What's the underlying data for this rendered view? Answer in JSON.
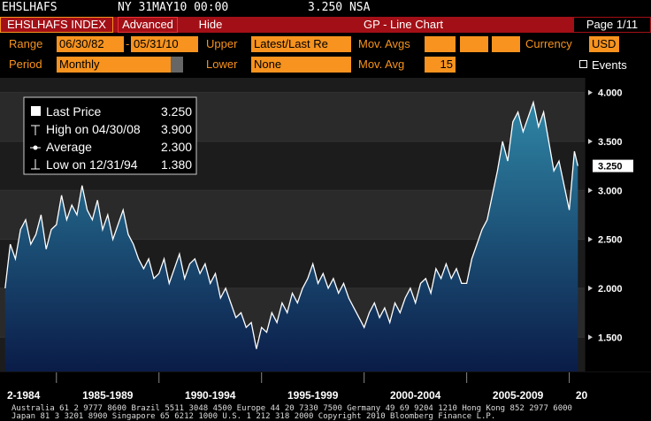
{
  "header": {
    "ticker": "EHSLHAFS",
    "timestamp": "NY 31MAY10 00:00",
    "last": "3.250 NSA"
  },
  "toolbar": {
    "security": "EHSLHAFS INDEX",
    "advanced": "Advanced",
    "hide": "Hide",
    "function": "GP - Line Chart",
    "page": "Page 1/11"
  },
  "form": {
    "range_label": "Range",
    "range_start": "06/30/82",
    "range_sep": "-",
    "range_end": "05/31/10",
    "upper_label": "Upper",
    "upper_value": "Latest/Last Re",
    "mov_avgs_label": "Mov. Avgs",
    "currency_label": "Currency",
    "currency_value": "USD",
    "period_label": "Period",
    "period_value": "Monthly",
    "lower_label": "Lower",
    "lower_value": "None",
    "mov_avg_label": "Mov. Avg",
    "mov_avg_value": "15",
    "events_label": "Events"
  },
  "chart_data": {
    "type": "line",
    "series": [
      {
        "name": "Last Price",
        "color": "#ffffff",
        "area_colors": [
          "#2f86a6",
          "#0a1c48"
        ],
        "x": [
          1982.5,
          1982.75,
          1983,
          1983.25,
          1983.5,
          1983.75,
          1984,
          1984.25,
          1984.5,
          1984.75,
          1985,
          1985.25,
          1985.5,
          1985.75,
          1986,
          1986.25,
          1986.5,
          1986.75,
          1987,
          1987.25,
          1987.5,
          1987.75,
          1988,
          1988.25,
          1988.5,
          1988.75,
          1989,
          1989.25,
          1989.5,
          1989.75,
          1990,
          1990.25,
          1990.5,
          1990.75,
          1991,
          1991.25,
          1991.5,
          1991.75,
          1992,
          1992.25,
          1992.5,
          1992.75,
          1993,
          1993.25,
          1993.5,
          1993.75,
          1994,
          1994.25,
          1994.5,
          1994.75,
          1995,
          1995.25,
          1995.5,
          1995.75,
          1996,
          1996.25,
          1996.5,
          1996.75,
          1997,
          1997.25,
          1997.5,
          1997.75,
          1998,
          1998.25,
          1998.5,
          1998.75,
          1999,
          1999.25,
          1999.5,
          1999.75,
          2000,
          2000.25,
          2000.5,
          2000.75,
          2001,
          2001.25,
          2001.5,
          2001.75,
          2002,
          2002.25,
          2002.5,
          2002.75,
          2003,
          2003.25,
          2003.5,
          2003.75,
          2004,
          2004.25,
          2004.5,
          2004.75,
          2005,
          2005.25,
          2005.5,
          2005.75,
          2006,
          2006.25,
          2006.5,
          2006.75,
          2007,
          2007.25,
          2007.5,
          2007.75,
          2008,
          2008.25,
          2008.5,
          2008.75,
          2009,
          2009.25,
          2009.5,
          2009.75,
          2010,
          2010.25,
          2010.42
        ],
        "values": [
          2.0,
          2.45,
          2.3,
          2.6,
          2.7,
          2.45,
          2.55,
          2.75,
          2.4,
          2.6,
          2.65,
          2.95,
          2.7,
          2.85,
          2.75,
          3.05,
          2.8,
          2.7,
          2.9,
          2.6,
          2.75,
          2.5,
          2.65,
          2.8,
          2.55,
          2.45,
          2.3,
          2.2,
          2.3,
          2.1,
          2.15,
          2.3,
          2.05,
          2.2,
          2.35,
          2.1,
          2.25,
          2.3,
          2.15,
          2.25,
          2.05,
          2.15,
          1.9,
          2.0,
          1.85,
          1.7,
          1.75,
          1.6,
          1.65,
          1.38,
          1.6,
          1.55,
          1.75,
          1.65,
          1.85,
          1.75,
          1.95,
          1.85,
          2.0,
          2.1,
          2.25,
          2.05,
          2.15,
          2.0,
          2.1,
          1.95,
          2.05,
          1.9,
          1.8,
          1.7,
          1.6,
          1.75,
          1.85,
          1.7,
          1.8,
          1.65,
          1.85,
          1.75,
          1.9,
          2.0,
          1.85,
          2.05,
          2.1,
          1.95,
          2.2,
          2.1,
          2.25,
          2.1,
          2.2,
          2.05,
          2.05,
          2.3,
          2.45,
          2.6,
          2.7,
          2.95,
          3.2,
          3.5,
          3.3,
          3.7,
          3.8,
          3.6,
          3.75,
          3.9,
          3.65,
          3.8,
          3.5,
          3.2,
          3.3,
          3.05,
          2.8,
          3.4,
          3.25
        ]
      }
    ],
    "last_price_label": "3.250",
    "legend_stats": [
      {
        "label": "High on 04/30/08",
        "value": "3.900"
      },
      {
        "label": "Average",
        "value": "2.300"
      },
      {
        "label": "Low on 12/31/94",
        "value": "1.380"
      }
    ],
    "xlim": [
      1982.25,
      2010.75
    ],
    "x_separators": [
      1985,
      1990,
      1995,
      2000,
      2005,
      2010
    ],
    "xticks": [
      {
        "value": 1983.4,
        "label": "2-1984"
      },
      {
        "value": 1987.5,
        "label": "1985-1989"
      },
      {
        "value": 1992.5,
        "label": "1990-1994"
      },
      {
        "value": 1997.5,
        "label": "1995-1999"
      },
      {
        "value": 2002.5,
        "label": "2000-2004"
      },
      {
        "value": 2007.5,
        "label": "2005-2009"
      },
      {
        "value": 2010.6,
        "label": "20"
      }
    ],
    "ylim": [
      1.15,
      4.15
    ],
    "yticks": [
      {
        "value": 1.5,
        "label": "1.500"
      },
      {
        "value": 2,
        "label": "2.000"
      },
      {
        "value": 2.5,
        "label": "2.500"
      },
      {
        "value": 3,
        "label": "3.000"
      },
      {
        "value": 3.5,
        "label": "3.500"
      },
      {
        "value": 4,
        "label": "4.000"
      }
    ],
    "grid": true
  },
  "footer": {
    "line1": "Australia 61 2 9777 8600 Brazil 5511 3048 4500 Europe 44 20 7330 7500 Germany 49 69 9204 1210 Hong Kong 852 2977 6000",
    "line2": "Japan 81 3 3201 8900        Singapore 65 6212 1000        U.S. 1 212 318 2000        Copyright 2010 Bloomberg Finance L.P."
  }
}
